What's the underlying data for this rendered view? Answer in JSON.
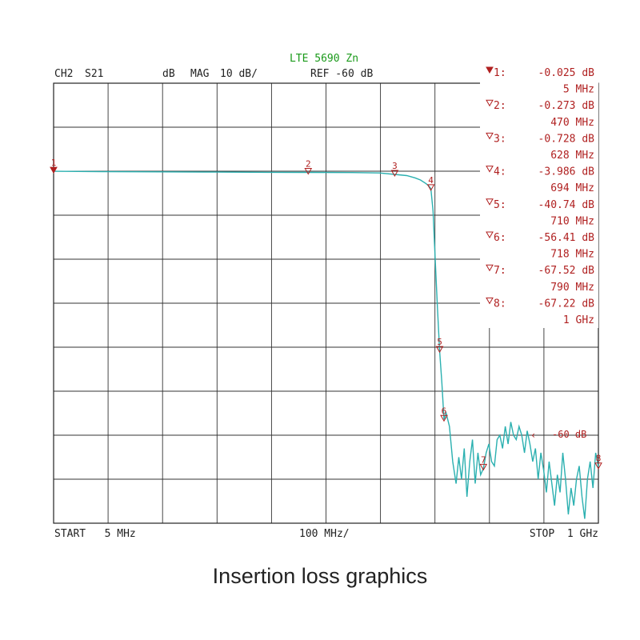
{
  "caption": "Insertion loss graphics",
  "chart_data": {
    "type": "line",
    "title": "LTE 5690 Zn",
    "header": {
      "channel": "CH2",
      "parameter": "S21",
      "unit": "dB",
      "format": "MAG",
      "scale": "10 dB/",
      "reference": "REF -60 dB"
    },
    "footer": {
      "start": "START   5 MHz",
      "center": "100 MHz/",
      "stop": "STOP  1 GHz"
    },
    "reference_marker_label": "-60 dB",
    "xlim_mhz": [
      5,
      1000
    ],
    "ylim_db": [
      -80,
      20
    ],
    "y_divisions": 10,
    "x_divisions": 10,
    "grid": true,
    "trace_color": "#2bb0b0",
    "marker_color": "#b02020",
    "title_color": "#1a9a1a",
    "markers": [
      {
        "id": "1",
        "freq_mhz": 5,
        "value_db": -0.025,
        "value_text": "-0.025 dB",
        "freq_text": "5 MHz",
        "active": true
      },
      {
        "id": "2",
        "freq_mhz": 470,
        "value_db": -0.273,
        "value_text": "-0.273 dB",
        "freq_text": "470 MHz",
        "active": false
      },
      {
        "id": "3",
        "freq_mhz": 628,
        "value_db": -0.728,
        "value_text": "-0.728 dB",
        "freq_text": "628 MHz",
        "active": false
      },
      {
        "id": "4",
        "freq_mhz": 694,
        "value_db": -3.986,
        "value_text": "-3.986 dB",
        "freq_text": "694 MHz",
        "active": false
      },
      {
        "id": "5",
        "freq_mhz": 710,
        "value_db": -40.74,
        "value_text": "-40.74 dB",
        "freq_text": "710 MHz",
        "active": false
      },
      {
        "id": "6",
        "freq_mhz": 718,
        "value_db": -56.41,
        "value_text": "-56.41 dB",
        "freq_text": "718 MHz",
        "active": false
      },
      {
        "id": "7",
        "freq_mhz": 790,
        "value_db": -67.52,
        "value_text": "-67.52 dB",
        "freq_text": "790 MHz",
        "active": false
      },
      {
        "id": "8",
        "freq_mhz": 1000,
        "value_db": -67.22,
        "value_text": "-67.22 dB",
        "freq_text": "1 GHz",
        "active": false
      }
    ],
    "trace": {
      "freq_mhz": [
        5,
        100,
        200,
        300,
        400,
        470,
        550,
        600,
        628,
        650,
        665,
        675,
        685,
        690,
        694,
        698,
        702,
        706,
        710,
        714,
        718,
        722,
        728,
        734,
        740,
        745,
        750,
        755,
        760,
        765,
        770,
        775,
        780,
        785,
        790,
        795,
        800,
        805,
        810,
        815,
        820,
        825,
        830,
        835,
        840,
        845,
        850,
        855,
        860,
        865,
        870,
        875,
        880,
        885,
        890,
        895,
        900,
        905,
        910,
        915,
        920,
        925,
        930,
        935,
        940,
        945,
        950,
        955,
        960,
        965,
        970,
        975,
        980,
        985,
        990,
        995,
        1000
      ],
      "s21_db": [
        -0.025,
        -0.1,
        -0.15,
        -0.2,
        -0.25,
        -0.273,
        -0.3,
        -0.4,
        -0.728,
        -1.0,
        -1.5,
        -2.0,
        -2.8,
        -3.3,
        -3.986,
        -9,
        -20,
        -31,
        -40.74,
        -48,
        -56.41,
        -55,
        -58,
        -66,
        -71,
        -65,
        -70,
        -63,
        -74,
        -66,
        -61,
        -71,
        -64,
        -69,
        -67.52,
        -64,
        -62,
        -66,
        -67,
        -61,
        -60,
        -63,
        -58,
        -62,
        -57,
        -60,
        -61,
        -58,
        -60,
        -64,
        -59,
        -62,
        -66,
        -63,
        -70,
        -64,
        -68,
        -73,
        -66,
        -71,
        -76,
        -69,
        -73,
        -64,
        -70,
        -78,
        -72,
        -76,
        -70,
        -67,
        -74,
        -79,
        -70,
        -66,
        -72,
        -64,
        -67.22
      ]
    }
  }
}
